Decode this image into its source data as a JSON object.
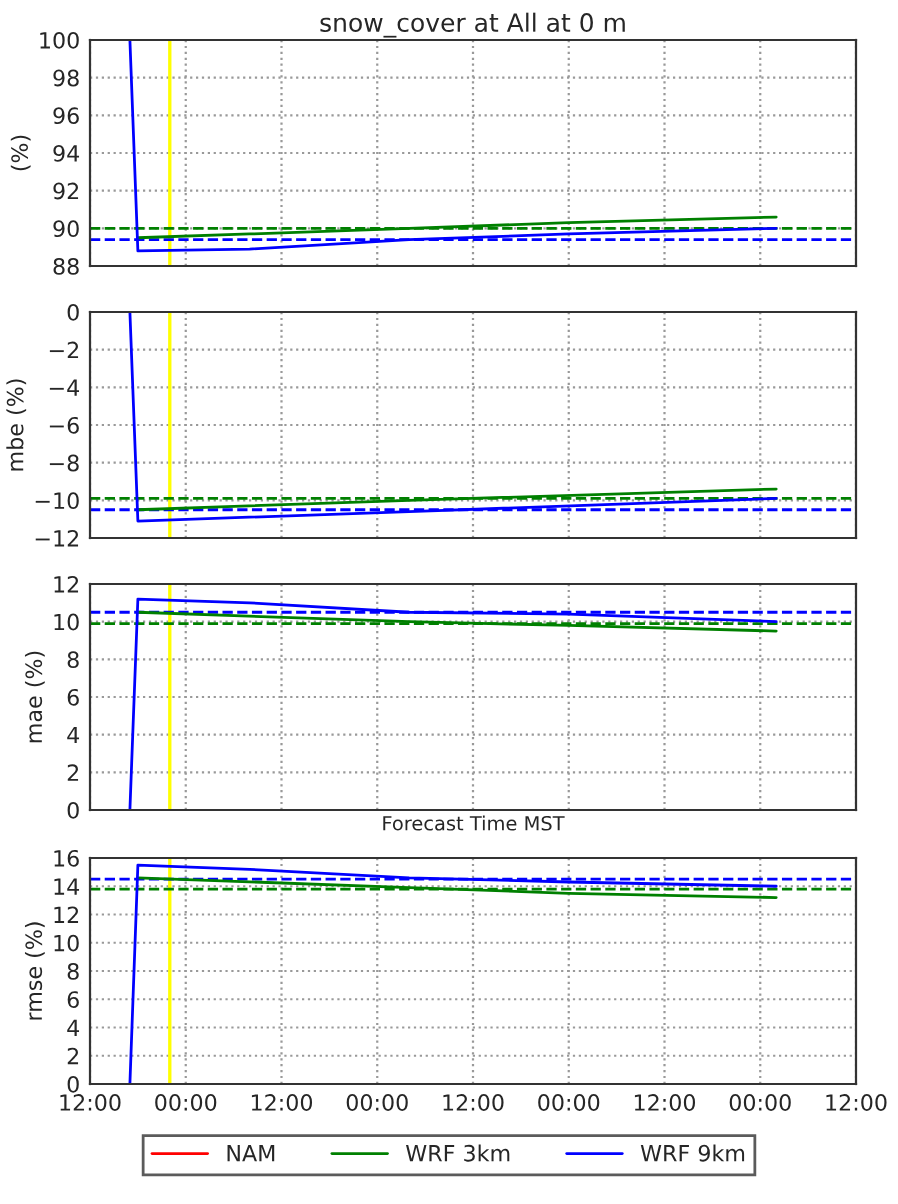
{
  "chart_data": [
    {
      "type": "line",
      "title": "snow_cover at All at 0 m",
      "ylabel": "(%)",
      "xlim": [
        "2000-01-01T12:00",
        "2000-01-05T12:00"
      ],
      "xticks": [
        {
          "value": "2000-01-01T12:00",
          "label": null
        },
        {
          "value": "2000-01-02T00:00",
          "label": null
        },
        {
          "value": "2000-01-02T12:00",
          "label": null
        },
        {
          "value": "2000-01-03T00:00",
          "label": null
        },
        {
          "value": "2000-01-03T12:00",
          "label": null
        },
        {
          "value": "2000-01-04T00:00",
          "label": null
        },
        {
          "value": "2000-01-04T12:00",
          "label": null
        },
        {
          "value": "2000-01-05T00:00",
          "label": null
        },
        {
          "value": "2000-01-05T12:00",
          "label": null
        }
      ],
      "ylim": [
        88,
        100
      ],
      "yticks": [
        88,
        90,
        92,
        94,
        96,
        98,
        100
      ],
      "grid": true,
      "tick_labels": "y",
      "line_style": "solid",
      "marker": "none",
      "series": [
        {
          "color": "#008000",
          "x": [
            "2000-01-01T18:00",
            "2000-01-02T08:00",
            "2000-01-03T04:00",
            "2000-01-04T00:00",
            "2000-01-05T02:00"
          ],
          "values": [
            89.5,
            89.7,
            90.0,
            90.3,
            90.6
          ]
        },
        {
          "color": "#0000ff",
          "x": [
            "2000-01-01T17:00",
            "2000-01-01T18:00",
            "2000-01-02T08:00",
            "2000-01-03T04:00",
            "2000-01-04T00:00",
            "2000-01-05T02:00"
          ],
          "values": [
            100,
            88.8,
            88.9,
            89.4,
            89.7,
            90.0
          ]
        }
      ],
      "ref_lines": [
        {
          "axis": "x",
          "value": "2000-01-01T22:00",
          "color": "#ffff00",
          "line_style": "solid"
        },
        {
          "axis": "y",
          "value": 90.0,
          "color": "#008000",
          "line_style": "dashed"
        },
        {
          "axis": "y",
          "value": 89.4,
          "color": "#0000ff",
          "line_style": "dashed"
        }
      ]
    },
    {
      "type": "line",
      "ylabel": "mbe (%)",
      "xlim": [
        "2000-01-01T12:00",
        "2000-01-05T12:00"
      ],
      "xticks": [
        {
          "value": "2000-01-01T12:00",
          "label": null
        },
        {
          "value": "2000-01-02T00:00",
          "label": null
        },
        {
          "value": "2000-01-02T12:00",
          "label": null
        },
        {
          "value": "2000-01-03T00:00",
          "label": null
        },
        {
          "value": "2000-01-03T12:00",
          "label": null
        },
        {
          "value": "2000-01-04T00:00",
          "label": null
        },
        {
          "value": "2000-01-04T12:00",
          "label": null
        },
        {
          "value": "2000-01-05T00:00",
          "label": null
        },
        {
          "value": "2000-01-05T12:00",
          "label": null
        }
      ],
      "ylim": [
        -12,
        0
      ],
      "yticks": [
        {
          "value": -12,
          "label": "−12"
        },
        {
          "value": -10,
          "label": "−10"
        },
        {
          "value": -8,
          "label": "−8"
        },
        {
          "value": -6,
          "label": "−6"
        },
        {
          "value": -4,
          "label": "−4"
        },
        {
          "value": -2,
          "label": "−2"
        },
        0
      ],
      "grid": true,
      "tick_labels": "y",
      "line_style": "solid",
      "marker": "none",
      "series": [
        {
          "color": "#008000",
          "x": [
            "2000-01-01T18:00",
            "2000-01-03T04:00",
            "2000-01-05T02:00"
          ],
          "values": [
            -10.5,
            -10.0,
            -9.4
          ]
        },
        {
          "color": "#0000ff",
          "x": [
            "2000-01-01T17:00",
            "2000-01-01T18:00",
            "2000-01-03T04:00",
            "2000-01-05T02:00"
          ],
          "values": [
            0,
            -11.1,
            -10.6,
            -9.9
          ]
        }
      ],
      "ref_lines": [
        {
          "axis": "x",
          "value": "2000-01-01T22:00",
          "color": "#ffff00",
          "line_style": "solid"
        },
        {
          "axis": "y",
          "value": -9.9,
          "color": "#008000",
          "line_style": "dashed"
        },
        {
          "axis": "y",
          "value": -10.5,
          "color": "#0000ff",
          "line_style": "dashed"
        }
      ]
    },
    {
      "type": "line",
      "ylabel": "mae (%)",
      "xlabel": "Forecast Time MST",
      "xlim": [
        "2000-01-01T12:00",
        "2000-01-05T12:00"
      ],
      "xticks": [
        {
          "value": "2000-01-01T12:00",
          "label": null
        },
        {
          "value": "2000-01-02T00:00",
          "label": null
        },
        {
          "value": "2000-01-02T12:00",
          "label": null
        },
        {
          "value": "2000-01-03T00:00",
          "label": null
        },
        {
          "value": "2000-01-03T12:00",
          "label": null
        },
        {
          "value": "2000-01-04T00:00",
          "label": null
        },
        {
          "value": "2000-01-04T12:00",
          "label": null
        },
        {
          "value": "2000-01-05T00:00",
          "label": null
        },
        {
          "value": "2000-01-05T12:00",
          "label": null
        }
      ],
      "ylim": [
        0,
        12
      ],
      "yticks": [
        0,
        2,
        4,
        6,
        8,
        10,
        12
      ],
      "grid": true,
      "tick_labels": "y",
      "line_style": "solid",
      "marker": "none",
      "series": [
        {
          "color": "#008000",
          "x": [
            "2000-01-01T18:00",
            "2000-01-03T04:00",
            "2000-01-04T00:00",
            "2000-01-05T02:00"
          ],
          "values": [
            10.5,
            10.0,
            9.8,
            9.5
          ]
        },
        {
          "color": "#0000ff",
          "x": [
            "2000-01-01T17:00",
            "2000-01-01T18:00",
            "2000-01-02T08:00",
            "2000-01-03T04:00",
            "2000-01-04T00:00",
            "2000-01-05T02:00"
          ],
          "values": [
            0,
            11.2,
            11.0,
            10.5,
            10.4,
            10.0
          ]
        }
      ],
      "ref_lines": [
        {
          "axis": "x",
          "value": "2000-01-01T22:00",
          "color": "#ffff00",
          "line_style": "solid"
        },
        {
          "axis": "y",
          "value": 9.9,
          "color": "#008000",
          "line_style": "dashed"
        },
        {
          "axis": "y",
          "value": 10.5,
          "color": "#0000ff",
          "line_style": "dashed"
        }
      ]
    },
    {
      "type": "line",
      "ylabel": "rmse (%)",
      "xlim": [
        "2000-01-01T12:00",
        "2000-01-05T12:00"
      ],
      "xticks": [
        {
          "value": "2000-01-01T12:00",
          "label": "12:00"
        },
        {
          "value": "2000-01-02T00:00",
          "label": "00:00"
        },
        {
          "value": "2000-01-02T12:00",
          "label": "12:00"
        },
        {
          "value": "2000-01-03T00:00",
          "label": "00:00"
        },
        {
          "value": "2000-01-03T12:00",
          "label": "12:00"
        },
        {
          "value": "2000-01-04T00:00",
          "label": "00:00"
        },
        {
          "value": "2000-01-04T12:00",
          "label": "12:00"
        },
        {
          "value": "2000-01-05T00:00",
          "label": "00:00"
        },
        {
          "value": "2000-01-05T12:00",
          "label": "12:00"
        }
      ],
      "ylim": [
        0,
        16
      ],
      "yticks": [
        0,
        2,
        4,
        6,
        8,
        10,
        12,
        14,
        16
      ],
      "grid": true,
      "legend": "bottom",
      "line_style": "solid",
      "marker": "none",
      "series": [
        {
          "name": "NAM",
          "color": "#ff0000"
        },
        {
          "name": "WRF 3km",
          "color": "#008000",
          "x": [
            "2000-01-01T18:00",
            "2000-01-03T04:00",
            "2000-01-04T00:00",
            "2000-01-05T02:00"
          ],
          "values": [
            14.6,
            13.9,
            13.5,
            13.2
          ]
        },
        {
          "name": "WRF 9km",
          "color": "#0000ff",
          "x": [
            "2000-01-01T17:00",
            "2000-01-01T18:00",
            "2000-01-02T08:00",
            "2000-01-03T04:00",
            "2000-01-04T00:00",
            "2000-01-05T02:00"
          ],
          "values": [
            0,
            15.5,
            15.2,
            14.6,
            14.3,
            14.0
          ]
        }
      ],
      "ref_lines": [
        {
          "axis": "x",
          "value": "2000-01-01T22:00",
          "color": "#ffff00",
          "line_style": "solid"
        },
        {
          "axis": "y",
          "value": 13.8,
          "color": "#008000",
          "line_style": "dashed"
        },
        {
          "axis": "y",
          "value": 14.5,
          "color": "#0000ff",
          "line_style": "dashed"
        }
      ]
    }
  ]
}
